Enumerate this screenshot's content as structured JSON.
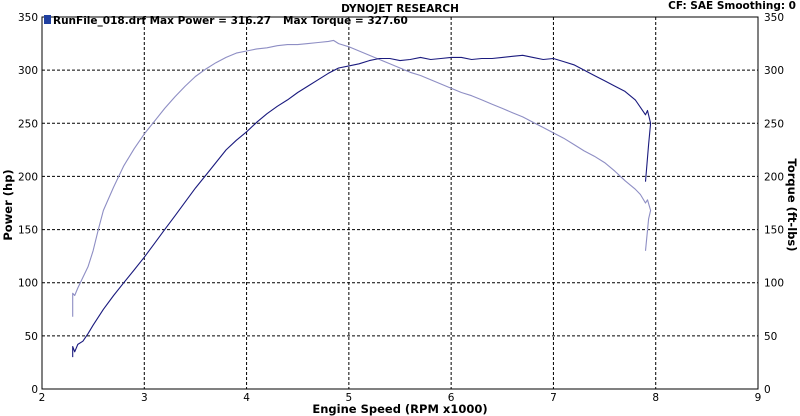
{
  "header": {
    "title": "DYNOJET RESEARCH",
    "settings": "CF: SAE  Smoothing: 0",
    "run_label": "RunFile_018.drf  Max Power = 316.27",
    "max_torque_label": "Max Torque = 327.60"
  },
  "colors": {
    "power": "#1a1a7e",
    "torque": "#8e8ec4",
    "grid": "#000000",
    "legend_swatch": "#1f3f9f"
  },
  "chart_data": {
    "type": "line",
    "title": "DYNOJET RESEARCH",
    "xlabel": "Engine Speed (RPM x1000)",
    "ylabel": "Power (hp)",
    "y2label": "Torque (ft-lbs)",
    "xlim": [
      2,
      9
    ],
    "ylim": [
      0,
      350
    ],
    "y2lim": [
      0,
      350
    ],
    "x_ticks": [
      2,
      3,
      4,
      5,
      6,
      7,
      8,
      9
    ],
    "y_ticks": [
      0,
      50,
      100,
      150,
      200,
      250,
      300,
      350
    ],
    "grid": true,
    "series": [
      {
        "name": "RunFile_018.drf",
        "label": "Power (hp)",
        "axis": "left",
        "color": "#1a1a7e",
        "x": [
          2.3,
          2.3,
          2.32,
          2.35,
          2.4,
          2.45,
          2.5,
          2.6,
          2.7,
          2.8,
          2.9,
          3.0,
          3.1,
          3.2,
          3.3,
          3.4,
          3.5,
          3.6,
          3.7,
          3.8,
          3.9,
          4.0,
          4.1,
          4.2,
          4.3,
          4.4,
          4.5,
          4.6,
          4.7,
          4.8,
          4.9,
          5.0,
          5.1,
          5.2,
          5.3,
          5.4,
          5.5,
          5.6,
          5.7,
          5.8,
          5.9,
          6.0,
          6.1,
          6.2,
          6.3,
          6.4,
          6.5,
          6.6,
          6.7,
          6.8,
          6.9,
          7.0,
          7.1,
          7.2,
          7.3,
          7.4,
          7.5,
          7.6,
          7.7,
          7.8,
          7.85,
          7.9,
          7.92,
          7.95,
          7.93,
          7.9
        ],
        "y": [
          30,
          40,
          35,
          42,
          45,
          52,
          60,
          75,
          88,
          100,
          112,
          124,
          137,
          150,
          163,
          176,
          189,
          201,
          213,
          225,
          234,
          242,
          251,
          259,
          266,
          272,
          279,
          285,
          291,
          297,
          302,
          304,
          306,
          309,
          311,
          311,
          309,
          310,
          312,
          310,
          311,
          312,
          312,
          310,
          311,
          311,
          312,
          313,
          314,
          312,
          310,
          311,
          308,
          305,
          300,
          295,
          290,
          285,
          280,
          272,
          265,
          258,
          262,
          250,
          230,
          195
        ]
      },
      {
        "name": "RunFile_018.drf",
        "label": "Torque (ft-lbs)",
        "axis": "right",
        "color": "#8e8ec4",
        "x": [
          2.3,
          2.3,
          2.32,
          2.35,
          2.4,
          2.45,
          2.5,
          2.55,
          2.6,
          2.7,
          2.8,
          2.9,
          3.0,
          3.1,
          3.2,
          3.3,
          3.4,
          3.5,
          3.6,
          3.7,
          3.8,
          3.9,
          4.0,
          4.1,
          4.2,
          4.3,
          4.4,
          4.5,
          4.6,
          4.7,
          4.8,
          4.85,
          4.9,
          5.0,
          5.1,
          5.2,
          5.3,
          5.4,
          5.5,
          5.6,
          5.7,
          5.8,
          5.9,
          6.0,
          6.1,
          6.2,
          6.3,
          6.4,
          6.5,
          6.6,
          6.7,
          6.8,
          6.9,
          7.0,
          7.1,
          7.2,
          7.3,
          7.4,
          7.5,
          7.6,
          7.7,
          7.8,
          7.85,
          7.9,
          7.92,
          7.95,
          7.93,
          7.9
        ],
        "y": [
          68,
          90,
          88,
          95,
          105,
          115,
          130,
          150,
          168,
          190,
          210,
          226,
          240,
          252,
          264,
          275,
          285,
          294,
          301,
          307,
          312,
          316,
          318,
          320,
          321,
          323,
          324,
          324,
          325,
          326,
          327,
          328,
          325,
          322,
          318,
          314,
          310,
          306,
          302,
          298,
          295,
          291,
          287,
          283,
          279,
          276,
          272,
          268,
          264,
          260,
          256,
          251,
          246,
          241,
          236,
          230,
          224,
          219,
          213,
          205,
          196,
          188,
          183,
          175,
          178,
          168,
          160,
          130
        ]
      }
    ]
  }
}
